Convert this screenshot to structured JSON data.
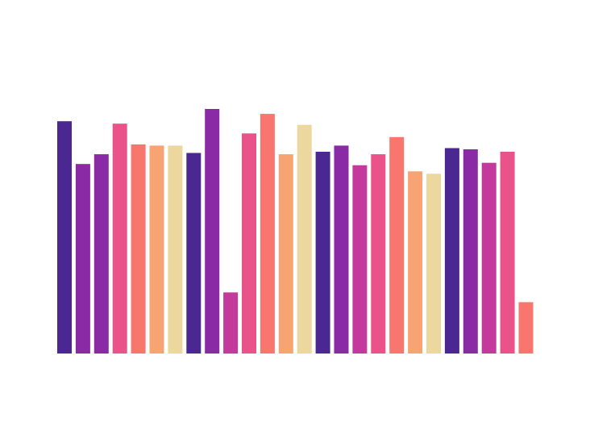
{
  "chart_data": {
    "type": "bar",
    "title": "",
    "xlabel": "",
    "ylabel": "",
    "axes_visible": false,
    "grid": false,
    "legend": "none",
    "ylim": [
      0,
      100
    ],
    "values": [
      95,
      77.5,
      81.5,
      94,
      85.5,
      85,
      85,
      82,
      100,
      25,
      90,
      98,
      81.5,
      93.5,
      82.5,
      85,
      77,
      81.5,
      88.5,
      74.5,
      73.5,
      84,
      83.5,
      78,
      82.5,
      21
    ],
    "colors": [
      "#4a2791",
      "#8a2aa4",
      "#8a2aa4",
      "#e9538a",
      "#f8766d",
      "#f8a373",
      "#ecd79f",
      "#4a2791",
      "#8a2aa4",
      "#c33a9c",
      "#e9538a",
      "#f8766d",
      "#f8a373",
      "#ecd79f",
      "#4a2791",
      "#8a2aa4",
      "#c33a9c",
      "#e9538a",
      "#f8766d",
      "#f8a373",
      "#ecd79f",
      "#4a2791",
      "#8a2aa4",
      "#c33a9c",
      "#e9538a",
      "#f8766d"
    ]
  }
}
